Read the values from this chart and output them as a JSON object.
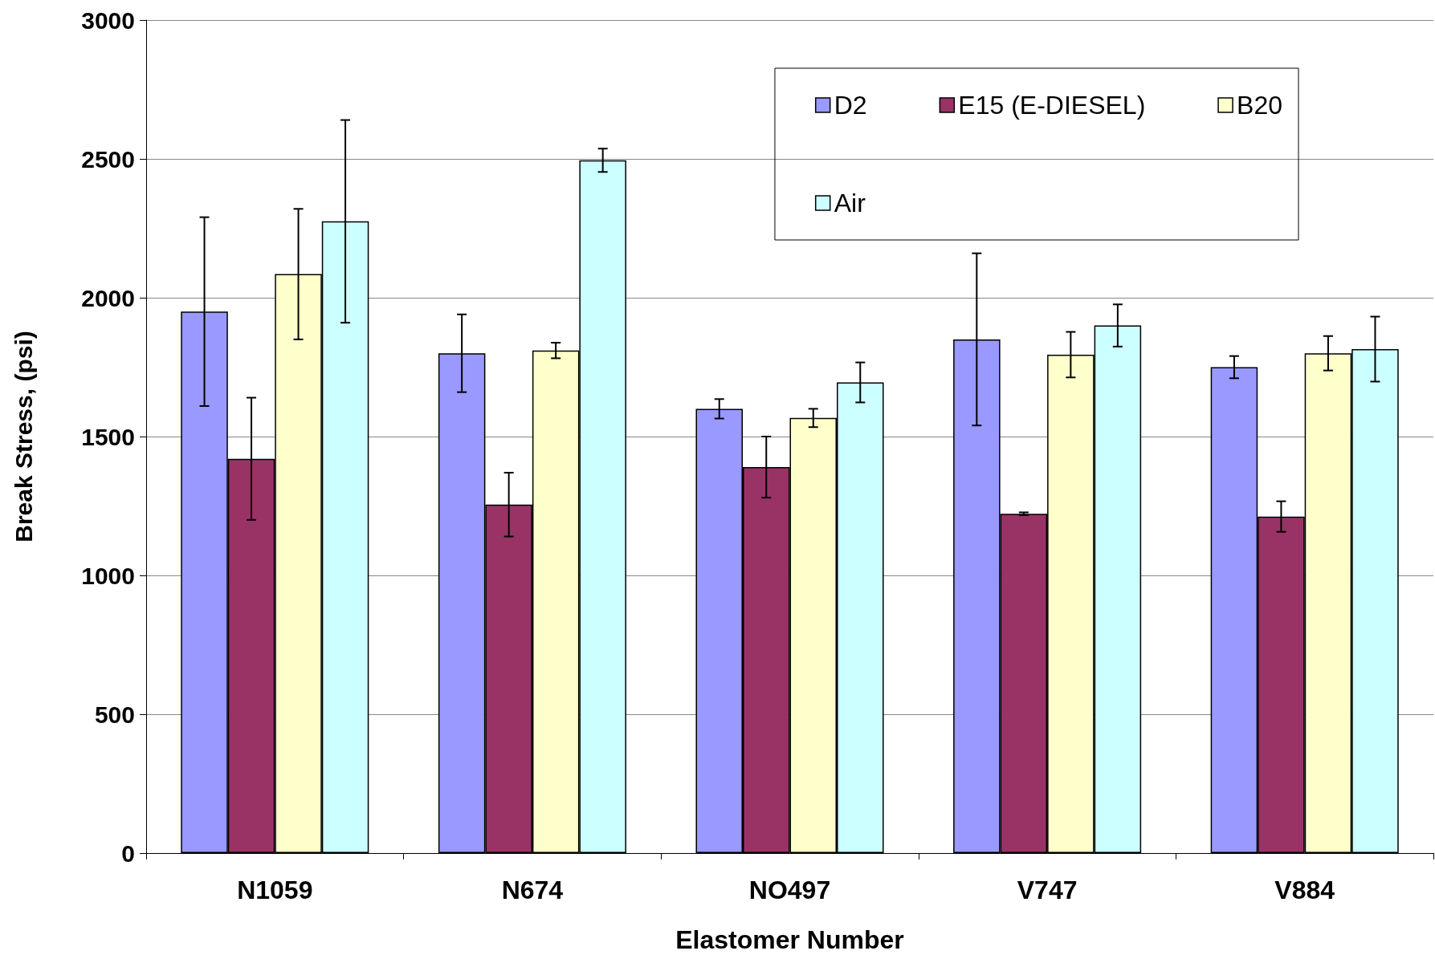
{
  "chart_data": {
    "type": "bar",
    "xlabel": "Elastomer Number",
    "ylabel": "Break Stress, (psi)",
    "categories": [
      "N1059",
      "N674",
      "NO497",
      "V747",
      "V884"
    ],
    "series": [
      {
        "name": "D2",
        "color": "#9999ff",
        "values": [
          1950,
          1800,
          1600,
          1850,
          1750
        ],
        "errors": [
          340,
          140,
          35,
          310,
          40
        ]
      },
      {
        "name": "E15 (E-DIESEL)",
        "color": "#993366",
        "values": [
          1420,
          1255,
          1390,
          1222,
          1212
        ],
        "errors": [
          220,
          115,
          110,
          5,
          55
        ]
      },
      {
        "name": "B20",
        "color": "#ffffcc",
        "values": [
          2085,
          1810,
          1567,
          1795,
          1800
        ],
        "errors": [
          235,
          28,
          33,
          82,
          62
        ]
      },
      {
        "name": "Air",
        "color": "#ccffff",
        "values": [
          2275,
          2495,
          1695,
          1900,
          1815
        ],
        "errors": [
          365,
          42,
          72,
          76,
          117
        ]
      }
    ],
    "ylim": [
      0,
      3000
    ],
    "yticks": [
      0,
      500,
      1000,
      1500,
      2000,
      2500,
      3000
    ],
    "grid": "y",
    "legend": "top right"
  }
}
